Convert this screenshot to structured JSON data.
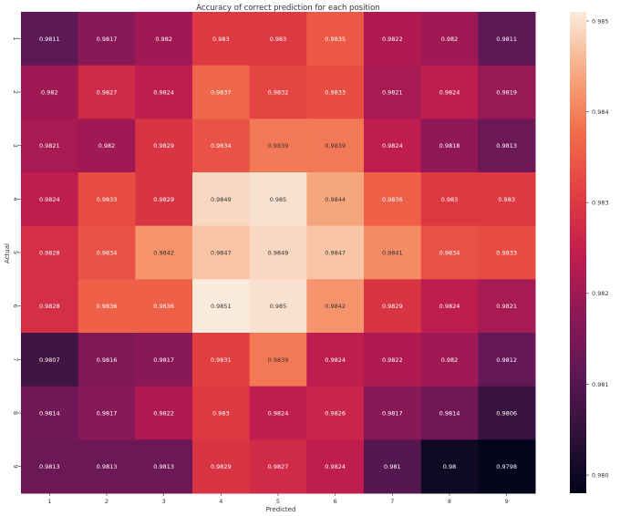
{
  "chart_data": {
    "type": "heatmap",
    "title": "Accuracy of correct prediction for each position",
    "xlabel": "Predicted",
    "ylabel": "Actual",
    "x_categories": [
      "1",
      "2",
      "3",
      "4",
      "5",
      "6",
      "7",
      "8",
      "9"
    ],
    "y_categories": [
      "1",
      "2",
      "3",
      "4",
      "5",
      "6",
      "7",
      "8",
      "9"
    ],
    "values": [
      [
        0.9811,
        0.9817,
        0.982,
        0.983,
        0.983,
        0.9835,
        0.9822,
        0.982,
        0.9811
      ],
      [
        0.982,
        0.9827,
        0.9824,
        0.9837,
        0.9832,
        0.9833,
        0.9821,
        0.9824,
        0.9819
      ],
      [
        0.9821,
        0.982,
        0.9829,
        0.9834,
        0.9839,
        0.9839,
        0.9824,
        0.9818,
        0.9813
      ],
      [
        0.9824,
        0.9833,
        0.9829,
        0.9849,
        0.985,
        0.9844,
        0.9836,
        0.983,
        0.983
      ],
      [
        0.9828,
        0.9834,
        0.9842,
        0.9847,
        0.9849,
        0.9847,
        0.9841,
        0.9834,
        0.9833
      ],
      [
        0.9828,
        0.9836,
        0.9836,
        0.9851,
        0.985,
        0.9842,
        0.9829,
        0.9824,
        0.9821
      ],
      [
        0.9807,
        0.9816,
        0.9817,
        0.9831,
        0.9839,
        0.9824,
        0.9822,
        0.982,
        0.9812
      ],
      [
        0.9814,
        0.9817,
        0.9822,
        0.983,
        0.9824,
        0.9826,
        0.9817,
        0.9814,
        0.9806
      ],
      [
        0.9813,
        0.9813,
        0.9813,
        0.9829,
        0.9827,
        0.9824,
        0.981,
        0.98,
        0.9798
      ]
    ],
    "colorbar": {
      "range": [
        0.9798,
        0.9851
      ],
      "ticks": [
        "0.980",
        "0.981",
        "0.982",
        "0.983",
        "0.984",
        "0.985"
      ],
      "colormap": "rocket"
    },
    "grid": false
  }
}
